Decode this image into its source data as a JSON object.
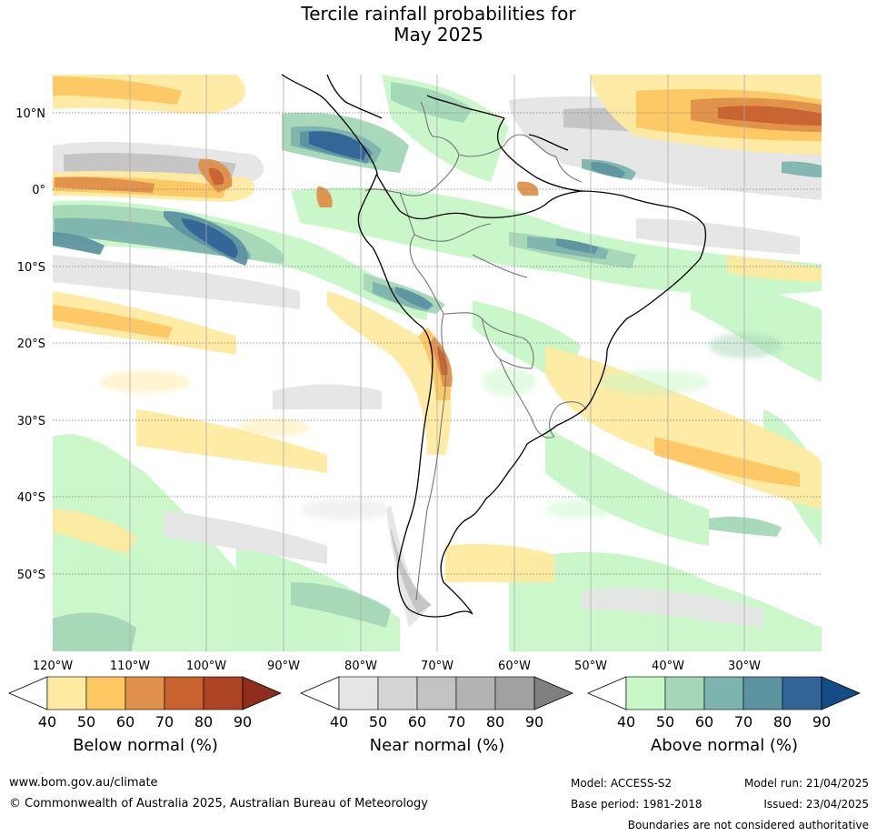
{
  "title": {
    "line1": "Tercile rainfall probabilities for",
    "line2": "May 2025"
  },
  "lat_labels": [
    "10°N",
    "0°",
    "10°S",
    "20°S",
    "30°S",
    "40°S",
    "50°S"
  ],
  "lon_labels": [
    "120°W",
    "110°W",
    "100°W",
    "90°W",
    "80°W",
    "70°W",
    "60°W",
    "50°W",
    "40°W",
    "30°W"
  ],
  "colorbars": [
    {
      "title": "Below normal (%)",
      "ticks": [
        "40",
        "50",
        "60",
        "70",
        "80",
        "90"
      ],
      "colors": [
        "#ffffff",
        "#feeaa0",
        "#fdc762",
        "#e0904a",
        "#c8622f",
        "#ad4525",
        "#8f2d1c"
      ]
    },
    {
      "title": "Near normal (%)",
      "ticks": [
        "40",
        "50",
        "60",
        "70",
        "80",
        "90"
      ],
      "colors": [
        "#ffffff",
        "#e5e5e5",
        "#d4d4d4",
        "#c3c3c3",
        "#b3b3b3",
        "#a1a1a1",
        "#808080"
      ]
    },
    {
      "title": "Above normal (%)",
      "ticks": [
        "40",
        "50",
        "60",
        "70",
        "80",
        "90"
      ],
      "colors": [
        "#ffffff",
        "#c8f7c8",
        "#a4d7b7",
        "#7db4ad",
        "#5c93a0",
        "#326497",
        "#134c87"
      ]
    }
  ],
  "footer": {
    "url": "www.bom.gov.au/climate",
    "copyright": "© Commonwealth of Australia 2025, Australian Bureau of Meteorology",
    "model": "Model: ACCESS-S2",
    "base_period": "Base period: 1981-2018",
    "model_run": "Model run: 21/04/2025",
    "issued": "Issued: 23/04/2025",
    "boundaries": "Boundaries are not considered authoritative"
  }
}
